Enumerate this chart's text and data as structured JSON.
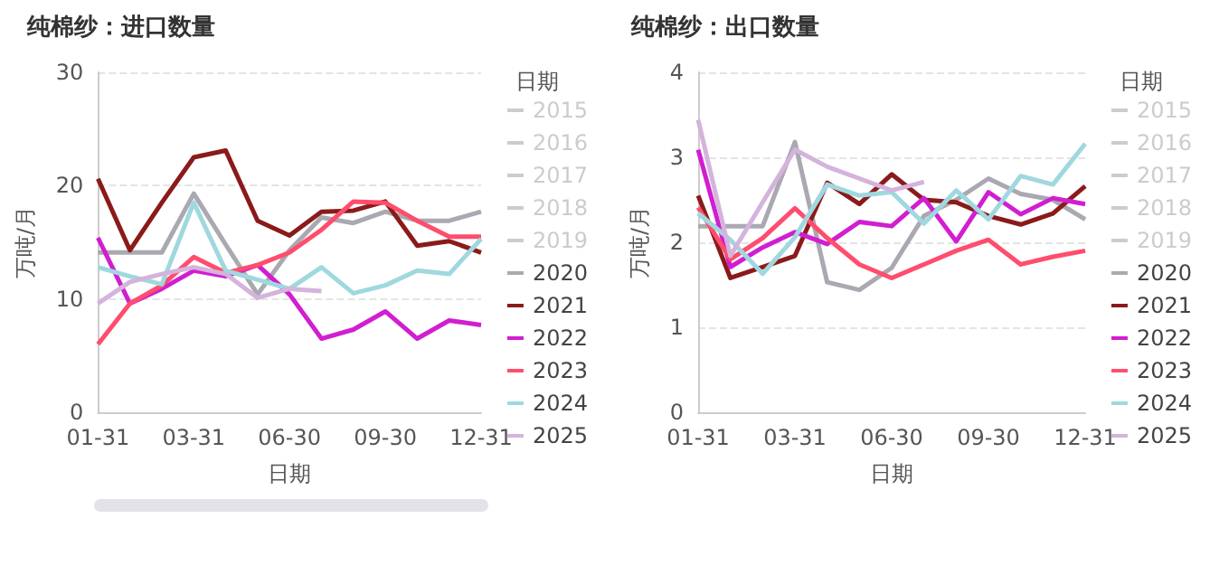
{
  "chart_data": [
    {
      "type": "line",
      "title": "纯棉纱：进口数量",
      "xlabel": "日期",
      "ylabel": "万吨/月",
      "legend_title": "日期",
      "legend": "right",
      "grid": "y",
      "marker": "none",
      "line_style": "solid",
      "categories": [
        "01-31",
        null,
        null,
        "03-31",
        null,
        null,
        "06-30",
        null,
        null,
        "09-30",
        null,
        null,
        "12-31"
      ],
      "ylim": [
        0,
        30
      ],
      "yticks": [
        0,
        10,
        20,
        30
      ],
      "series": [
        {
          "name": "2015",
          "values": [
            null,
            null,
            null,
            null,
            null,
            null,
            null,
            null,
            null,
            null,
            null,
            null,
            null
          ]
        },
        {
          "name": "2016",
          "values": [
            null,
            null,
            null,
            null,
            null,
            null,
            null,
            null,
            null,
            null,
            null,
            null,
            null
          ]
        },
        {
          "name": "2017",
          "values": [
            null,
            null,
            null,
            null,
            null,
            null,
            null,
            null,
            null,
            null,
            null,
            null,
            null
          ]
        },
        {
          "name": "2018",
          "values": [
            null,
            null,
            null,
            null,
            null,
            null,
            null,
            null,
            null,
            null,
            null,
            null,
            null
          ]
        },
        {
          "name": "2019",
          "values": [
            null,
            null,
            null,
            null,
            null,
            null,
            null,
            null,
            null,
            null,
            null,
            null,
            null
          ]
        },
        {
          "name": "2020",
          "color": "#aaa8b0",
          "values": [
            14.1,
            14.1,
            14.1,
            19.3,
            14.8,
            10.4,
            14.3,
            17.2,
            16.7,
            17.7,
            16.9,
            16.9,
            17.7
          ]
        },
        {
          "name": "2021",
          "color": "#8b1a1a",
          "values": [
            20.6,
            14.3,
            18.5,
            22.5,
            23.1,
            16.9,
            15.6,
            17.7,
            17.8,
            18.6,
            14.7,
            15.1,
            14.1
          ]
        },
        {
          "name": "2022",
          "color": "#d11ed1",
          "values": [
            15.4,
            9.6,
            10.9,
            12.5,
            12.0,
            13.0,
            10.4,
            6.5,
            7.3,
            8.9,
            6.5,
            8.1,
            7.7
          ]
        },
        {
          "name": "2023",
          "color": "#ff4d6d",
          "values": [
            6.0,
            9.6,
            11.2,
            13.7,
            12.3,
            13.0,
            14.1,
            16.1,
            18.6,
            18.5,
            16.9,
            15.5,
            15.5
          ]
        },
        {
          "name": "2024",
          "color": "#9fd8df",
          "values": [
            12.8,
            12.0,
            11.3,
            18.5,
            12.5,
            11.7,
            10.9,
            12.8,
            10.5,
            11.2,
            12.5,
            12.2,
            15.3
          ]
        },
        {
          "name": "2025",
          "color": "#d4b3dc",
          "values": [
            9.6,
            11.5,
            12.2,
            12.8,
            12.2,
            10.1,
            10.9,
            10.7,
            null,
            null,
            null,
            null,
            null
          ]
        }
      ]
    },
    {
      "type": "line",
      "title": "纯棉纱：出口数量",
      "xlabel": "日期",
      "ylabel": "万吨/月",
      "legend_title": "日期",
      "legend": "right",
      "grid": "y",
      "marker": "none",
      "line_style": "solid",
      "categories": [
        "01-31",
        null,
        null,
        "03-31",
        null,
        null,
        "06-30",
        null,
        null,
        "09-30",
        null,
        null,
        "12-31"
      ],
      "ylim": [
        0,
        4
      ],
      "yticks": [
        0,
        1,
        2,
        3,
        4
      ],
      "series": [
        {
          "name": "2015",
          "values": [
            null,
            null,
            null,
            null,
            null,
            null,
            null,
            null,
            null,
            null,
            null,
            null,
            null
          ]
        },
        {
          "name": "2016",
          "values": [
            null,
            null,
            null,
            null,
            null,
            null,
            null,
            null,
            null,
            null,
            null,
            null,
            null
          ]
        },
        {
          "name": "2017",
          "values": [
            null,
            null,
            null,
            null,
            null,
            null,
            null,
            null,
            null,
            null,
            null,
            null,
            null
          ]
        },
        {
          "name": "2018",
          "values": [
            null,
            null,
            null,
            null,
            null,
            null,
            null,
            null,
            null,
            null,
            null,
            null,
            null
          ]
        },
        {
          "name": "2019",
          "values": [
            null,
            null,
            null,
            null,
            null,
            null,
            null,
            null,
            null,
            null,
            null,
            null,
            null
          ]
        },
        {
          "name": "2020",
          "color": "#aaa8b0",
          "values": [
            2.19,
            2.19,
            2.19,
            3.18,
            1.53,
            1.44,
            1.7,
            2.31,
            2.5,
            2.75,
            2.57,
            2.5,
            2.27
          ]
        },
        {
          "name": "2021",
          "color": "#8b1a1a",
          "values": [
            2.55,
            1.58,
            1.71,
            1.84,
            2.7,
            2.45,
            2.8,
            2.5,
            2.47,
            2.31,
            2.21,
            2.34,
            2.66
          ]
        },
        {
          "name": "2022",
          "color": "#d11ed1",
          "values": [
            3.09,
            1.71,
            1.94,
            2.12,
            1.98,
            2.24,
            2.19,
            2.52,
            2.01,
            2.59,
            2.33,
            2.52,
            2.45
          ]
        },
        {
          "name": "2023",
          "color": "#ff4d6d",
          "values": [
            2.41,
            1.8,
            2.05,
            2.4,
            2.05,
            1.74,
            1.58,
            1.74,
            1.9,
            2.03,
            1.74,
            1.83,
            1.9
          ]
        },
        {
          "name": "2024",
          "color": "#9fd8df",
          "values": [
            2.34,
            2.03,
            1.63,
            2.06,
            2.68,
            2.55,
            2.59,
            2.22,
            2.61,
            2.27,
            2.78,
            2.68,
            3.16
          ]
        },
        {
          "name": "2025",
          "color": "#d4b3dc",
          "values": [
            3.44,
            1.84,
            2.47,
            3.09,
            2.89,
            2.75,
            2.61,
            2.71,
            null,
            null,
            null,
            null,
            null
          ]
        }
      ]
    }
  ]
}
